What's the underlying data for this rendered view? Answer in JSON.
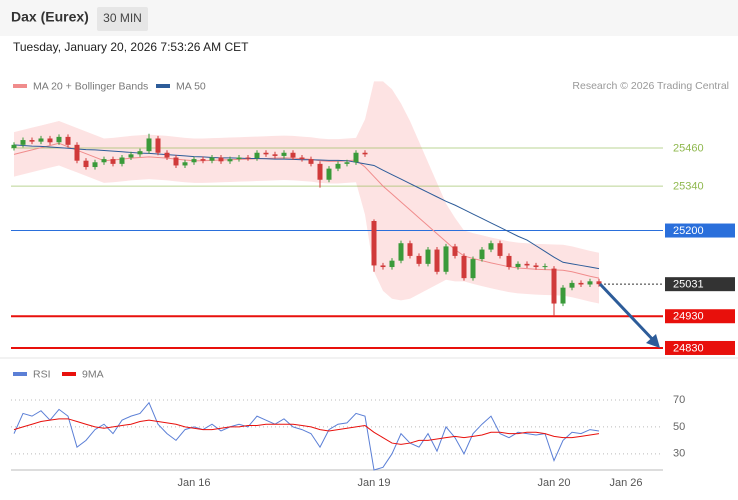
{
  "header": {
    "title": "Dax (Eurex)",
    "timeframe": "30 MIN",
    "datetime": "Tuesday, January 20, 2026 7:53:26 AM CET"
  },
  "chart_data": [
    {
      "type": "candlestick",
      "source": "Research © 2026 Trading Central",
      "categories": [
        null,
        null,
        null,
        null,
        null,
        null,
        null,
        null,
        null,
        null,
        null,
        null,
        null,
        null,
        null,
        null,
        null,
        null,
        null,
        null,
        "Jan 16",
        null,
        null,
        null,
        null,
        null,
        null,
        null,
        null,
        null,
        null,
        null,
        null,
        null,
        null,
        null,
        null,
        null,
        null,
        null,
        "Jan 19",
        null,
        null,
        null,
        null,
        null,
        null,
        null,
        null,
        null,
        null,
        null,
        null,
        null,
        null,
        null,
        null,
        null,
        null,
        null,
        "Jan 20",
        null,
        null,
        null,
        null,
        null,
        null,
        null,
        "Jan 26",
        null,
        null,
        null
      ],
      "open": [
        25460,
        25470,
        25485,
        25480,
        25490,
        25478,
        25495,
        25470,
        25420,
        25400,
        25415,
        25425,
        25410,
        25430,
        25440,
        25450,
        25490,
        25445,
        25430,
        25405,
        25415,
        25425,
        25420,
        25430,
        25418,
        25425,
        25430,
        25428,
        25445,
        25440,
        25435,
        25445,
        25430,
        25425,
        25410,
        25360,
        25395,
        25410,
        25415,
        25445,
        25230,
        25090,
        25085,
        25105,
        25160,
        25120,
        25095,
        25140,
        25070,
        25150,
        25120,
        25050,
        25110,
        25140,
        25160,
        25120,
        25085,
        25095,
        25090,
        25085,
        25080,
        24970,
        25020,
        25035,
        25030,
        25040,
        null,
        null,
        null,
        null,
        null,
        null
      ],
      "high": [
        25478,
        25493,
        25493,
        25498,
        25498,
        25503,
        25503,
        25478,
        25428,
        25423,
        25433,
        25433,
        25438,
        25448,
        25458,
        25505,
        25498,
        25453,
        25438,
        25423,
        25433,
        25433,
        25438,
        25438,
        25433,
        25438,
        25438,
        25453,
        25453,
        25448,
        25453,
        25453,
        25438,
        25433,
        25418,
        25403,
        25418,
        25423,
        25453,
        25453,
        25235,
        25098,
        25113,
        25168,
        25168,
        25128,
        25148,
        25148,
        25158,
        25158,
        25128,
        25118,
        25148,
        25168,
        25168,
        25128,
        25103,
        25103,
        25098,
        25096,
        25088,
        25028,
        25043,
        25043,
        25048,
        25048,
        null,
        null,
        null,
        null,
        null,
        null
      ],
      "low": [
        25452,
        25462,
        25472,
        25472,
        25470,
        25470,
        25462,
        25412,
        25392,
        25392,
        25407,
        25402,
        25402,
        25422,
        25432,
        25442,
        25437,
        25422,
        25397,
        25397,
        25407,
        25412,
        25412,
        25410,
        25410,
        25417,
        25420,
        25420,
        25432,
        25427,
        25427,
        25422,
        25417,
        25402,
        25335,
        25352,
        25387,
        25402,
        25407,
        25432,
        25070,
        25077,
        25077,
        25097,
        25112,
        25087,
        25087,
        25062,
        25062,
        25112,
        25042,
        25042,
        25102,
        25132,
        25112,
        25077,
        25077,
        25082,
        25077,
        25077,
        24930,
        24962,
        25012,
        25022,
        25022,
        25023,
        null,
        null,
        null,
        null,
        null,
        null
      ],
      "close": [
        25470,
        25485,
        25480,
        25490,
        25478,
        25495,
        25470,
        25420,
        25400,
        25415,
        25425,
        25410,
        25430,
        25440,
        25450,
        25490,
        25445,
        25430,
        25405,
        25415,
        25425,
        25420,
        25430,
        25418,
        25425,
        25430,
        25428,
        25445,
        25440,
        25435,
        25445,
        25430,
        25425,
        25410,
        25360,
        25395,
        25410,
        25415,
        25445,
        25440,
        25090,
        25085,
        25105,
        25160,
        25120,
        25095,
        25140,
        25070,
        25150,
        25120,
        25050,
        25110,
        25140,
        25160,
        25120,
        25085,
        25095,
        25090,
        25085,
        25088,
        24970,
        25020,
        25035,
        25030,
        25040,
        25031,
        null,
        null,
        null,
        null,
        null,
        null
      ],
      "up_color": "#3a9a3a",
      "down_color": "#d03a3a",
      "series": [
        {
          "name": "MA 20 + Bollinger Bands",
          "color": "#f08c8c",
          "band_color": "#fde3e3",
          "values": [
            25440,
            25447,
            25454,
            25461,
            25468,
            25475,
            25464,
            25453,
            25442,
            25431,
            25420,
            25422,
            25425,
            25428,
            25430,
            25432,
            25430,
            25428,
            25425,
            25422,
            25420,
            25420,
            25421,
            25422,
            25423,
            25424,
            25425,
            25426,
            25427,
            25428,
            25429,
            25428,
            25426,
            25424,
            25420,
            25418,
            25418,
            25420,
            25422,
            25400,
            25370,
            25340,
            25315,
            25290,
            25265,
            25240,
            25215,
            25190,
            25165,
            25140,
            25120,
            25112,
            25105,
            25098,
            25092,
            25086,
            25082,
            25080,
            25078,
            25077,
            25076,
            25075,
            25070,
            25063,
            25056,
            25050,
            null,
            null,
            null,
            null,
            null,
            null
          ],
          "upper": [
            25510,
            25517,
            25524,
            25531,
            25538,
            25545,
            25534,
            25523,
            25512,
            25501,
            25490,
            25492,
            25495,
            25498,
            25500,
            25502,
            25500,
            25498,
            25495,
            25492,
            25490,
            25490,
            25491,
            25492,
            25493,
            25494,
            25495,
            25496,
            25497,
            25498,
            25499,
            25498,
            25496,
            25494,
            25490,
            25488,
            25488,
            25490,
            25492,
            25550,
            25670,
            25670,
            25645,
            25600,
            25545,
            25480,
            25415,
            25350,
            25285,
            25240,
            25200,
            25192,
            25185,
            25178,
            25172,
            25166,
            25162,
            25160,
            25158,
            25157,
            25156,
            25155,
            25150,
            25143,
            25136,
            25130,
            null,
            null,
            null,
            null,
            null,
            null
          ],
          "lower": [
            25370,
            25377,
            25384,
            25391,
            25398,
            25405,
            25394,
            25383,
            25372,
            25361,
            25350,
            25352,
            25355,
            25358,
            25360,
            25362,
            25360,
            25358,
            25355,
            25352,
            25350,
            25350,
            25351,
            25352,
            25353,
            25354,
            25355,
            25356,
            25357,
            25358,
            25359,
            25358,
            25356,
            25354,
            25350,
            25348,
            25348,
            25350,
            25352,
            25250,
            25070,
            25010,
            24985,
            24980,
            24985,
            25000,
            25015,
            25030,
            25045,
            25040,
            25040,
            25032,
            25025,
            25018,
            25012,
            25006,
            25002,
            25000,
            24998,
            24997,
            24996,
            24995,
            24990,
            24983,
            24976,
            24970,
            null,
            null,
            null,
            null,
            null,
            null
          ]
        },
        {
          "name": "MA 50",
          "color": "#2d5c99",
          "values": [
            25470,
            25468,
            25466,
            25465,
            25463,
            25461,
            25459,
            25457,
            25455,
            25454,
            25452,
            25450,
            25448,
            25446,
            25444,
            25443,
            25441,
            25439,
            25437,
            25435,
            25433,
            25432,
            25430,
            25429,
            25429,
            25428,
            25427,
            25427,
            25426,
            25425,
            25425,
            25424,
            25423,
            25423,
            25422,
            25421,
            25421,
            25420,
            25415,
            25410,
            25405,
            25390,
            25376,
            25362,
            25348,
            25334,
            25320,
            25306,
            25292,
            25280,
            25266,
            25252,
            25238,
            25224,
            25210,
            25196,
            25182,
            25170,
            25152,
            25134,
            25116,
            25100,
            25095,
            25090,
            25085,
            25080,
            null,
            null,
            null,
            null,
            null,
            null
          ]
        }
      ],
      "levels": [
        {
          "value": 25460,
          "color": "#8fb84e",
          "style": "text"
        },
        {
          "value": 25340,
          "color": "#8fb84e",
          "style": "text"
        },
        {
          "value": 25200,
          "color": "#2a6fdb",
          "style": "box"
        },
        {
          "value": 25031,
          "color": "#333333",
          "style": "box"
        },
        {
          "value": 24930,
          "color": "#e8100c",
          "style": "box"
        },
        {
          "value": 24830,
          "color": "#e8100c",
          "style": "box"
        }
      ],
      "ylim": [
        24800,
        25560
      ]
    },
    {
      "type": "line",
      "series": [
        {
          "name": "RSI",
          "color": "#5b7fd6",
          "values": [
            45,
            60,
            58,
            62,
            55,
            63,
            58,
            35,
            40,
            48,
            52,
            45,
            55,
            58,
            60,
            68,
            52,
            45,
            40,
            48,
            50,
            48,
            52,
            47,
            50,
            52,
            50,
            58,
            55,
            52,
            56,
            50,
            48,
            45,
            35,
            48,
            52,
            53,
            60,
            58,
            18,
            20,
            30,
            45,
            38,
            35,
            45,
            32,
            50,
            42,
            30,
            45,
            52,
            58,
            45,
            42,
            46,
            45,
            44,
            45,
            25,
            40,
            46,
            45,
            48,
            47,
            null,
            null,
            null,
            null,
            null,
            null
          ]
        },
        {
          "name": "9MA",
          "color": "#e8100c",
          "values": [
            48,
            50,
            52,
            54,
            55,
            56,
            56,
            54,
            52,
            50,
            49,
            50,
            51,
            52,
            54,
            55,
            54,
            53,
            52,
            50,
            49,
            48,
            48,
            49,
            50,
            50,
            51,
            51,
            52,
            52,
            52,
            52,
            51,
            50,
            48,
            47,
            48,
            49,
            50,
            51,
            46,
            42,
            38,
            37,
            38,
            40,
            40,
            41,
            42,
            43,
            42,
            43,
            44,
            46,
            46,
            45,
            45,
            46,
            46,
            45,
            43,
            42,
            42,
            43,
            44,
            45,
            null,
            null,
            null,
            null,
            null,
            null
          ]
        }
      ],
      "ylim": [
        18,
        80
      ],
      "yticks": [
        70,
        50,
        30
      ],
      "grid": true
    }
  ]
}
